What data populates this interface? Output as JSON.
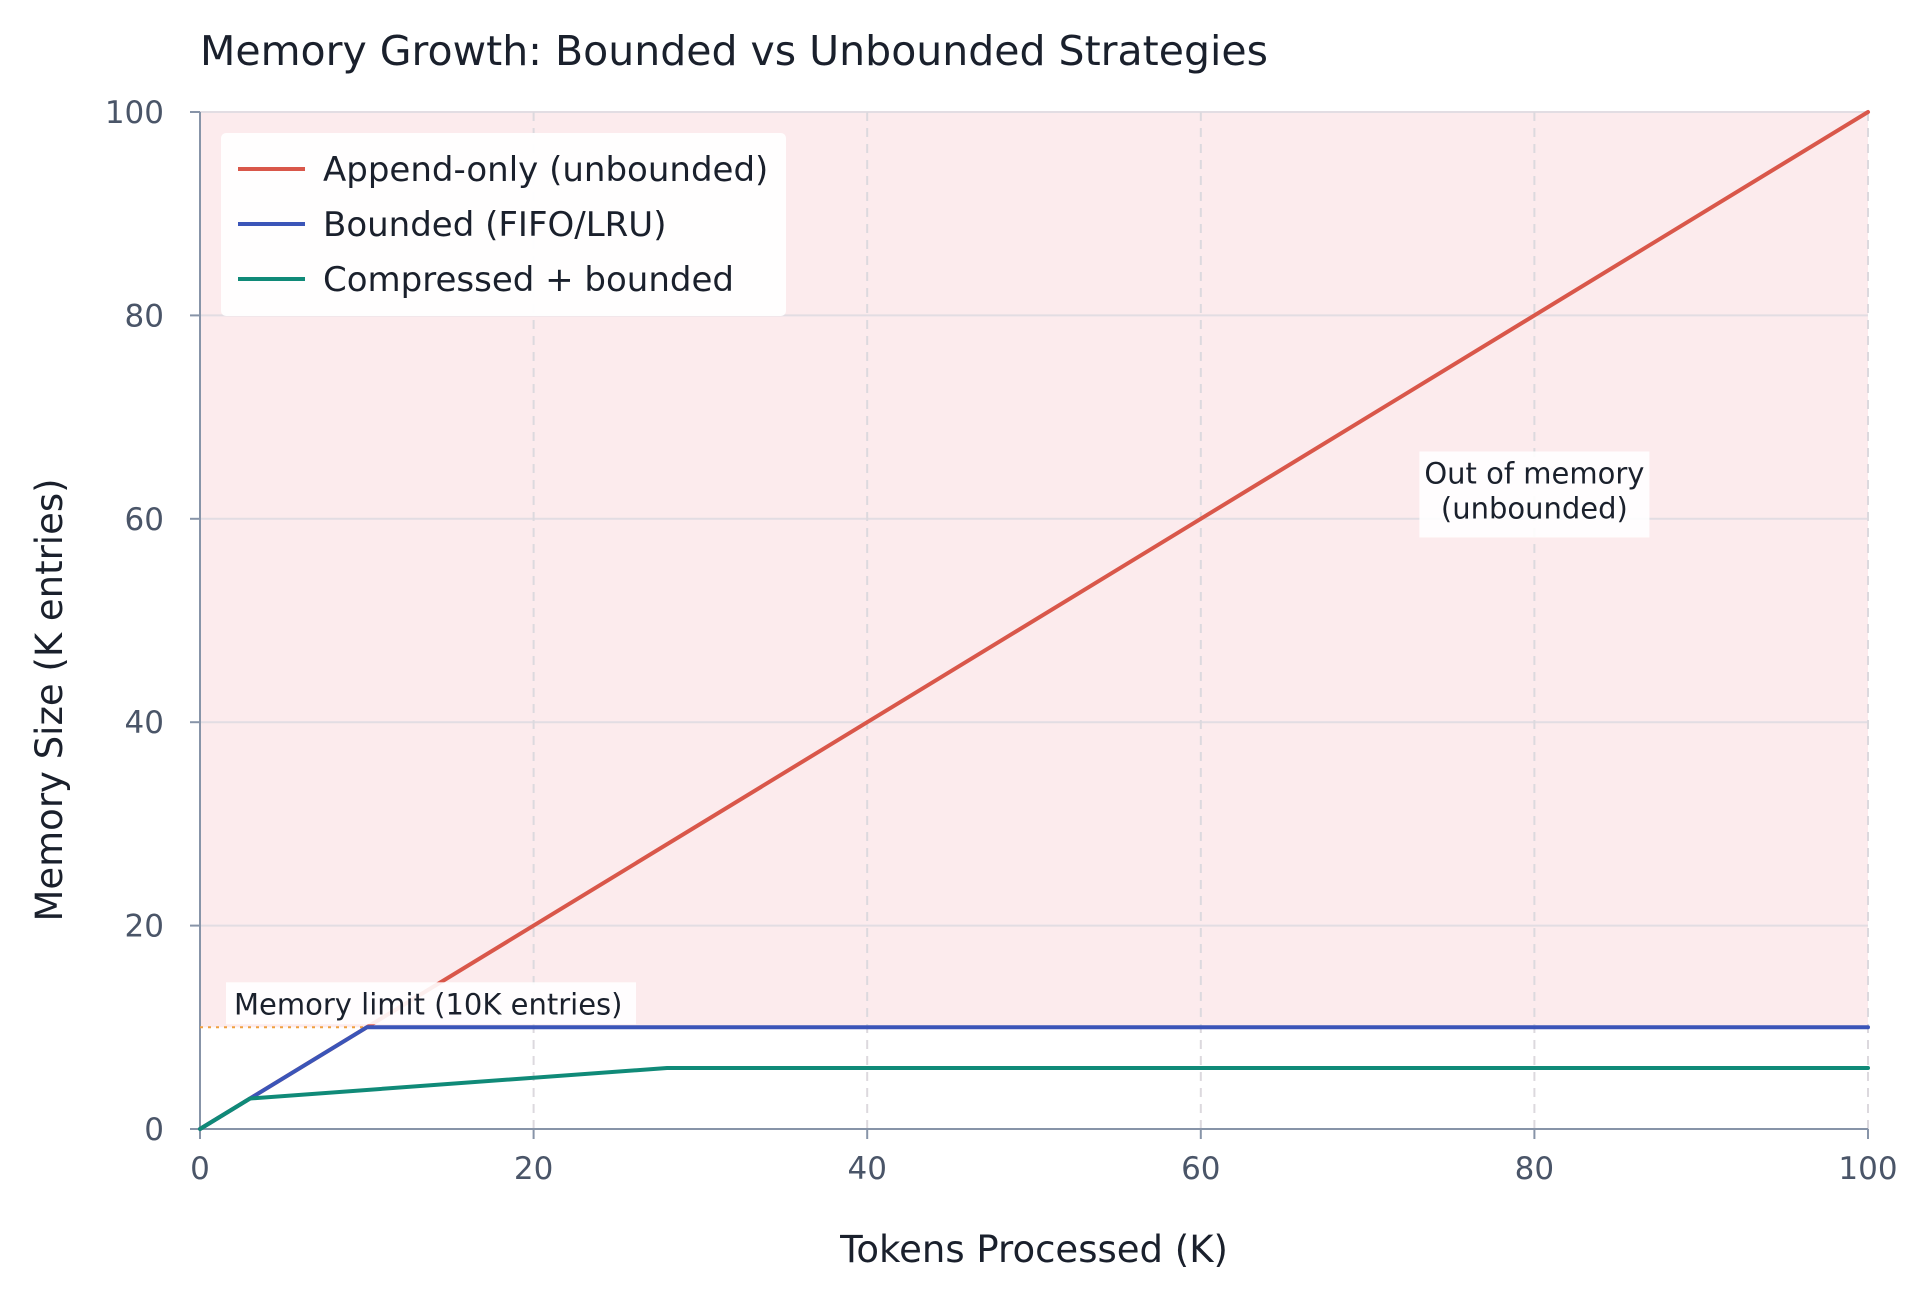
{
  "chart_data": {
    "type": "line",
    "title": "Memory Growth: Bounded vs Unbounded Strategies",
    "xlabel": "Tokens Processed (K)",
    "ylabel": "Memory Size (K entries)",
    "xlim": [
      0,
      100
    ],
    "ylim": [
      0,
      100
    ],
    "x_ticks": [
      0,
      20,
      40,
      60,
      80,
      100
    ],
    "y_ticks": [
      0,
      20,
      40,
      60,
      80,
      100
    ],
    "x_tick_labels": [
      "0",
      "20",
      "40",
      "60",
      "80",
      "100"
    ],
    "y_tick_labels": [
      "0",
      "20",
      "40",
      "60",
      "80",
      "100"
    ],
    "grid": true,
    "legend_position": "top-left",
    "shaded_region": {
      "y_from": 10,
      "y_to": 100,
      "color": "#fcebed"
    },
    "series": [
      {
        "name": "Append-only (unbounded)",
        "color": "#d9574a",
        "x": [
          0,
          100
        ],
        "y": [
          0,
          100
        ]
      },
      {
        "name": "Bounded (FIFO/LRU)",
        "color": "#3b55b8",
        "x": [
          0,
          10,
          100
        ],
        "y": [
          0,
          10,
          10
        ]
      },
      {
        "name": "Compressed + bounded",
        "color": "#108a78",
        "x": [
          0,
          3,
          28,
          100
        ],
        "y": [
          0,
          3,
          6,
          6
        ]
      }
    ],
    "reference_line": {
      "y": 10,
      "color": "#f0a040",
      "label": "Memory limit (10K entries)"
    },
    "annotations": [
      {
        "text": "Out of memory\n(unbounded)",
        "x": 80,
        "y": 62
      }
    ]
  }
}
